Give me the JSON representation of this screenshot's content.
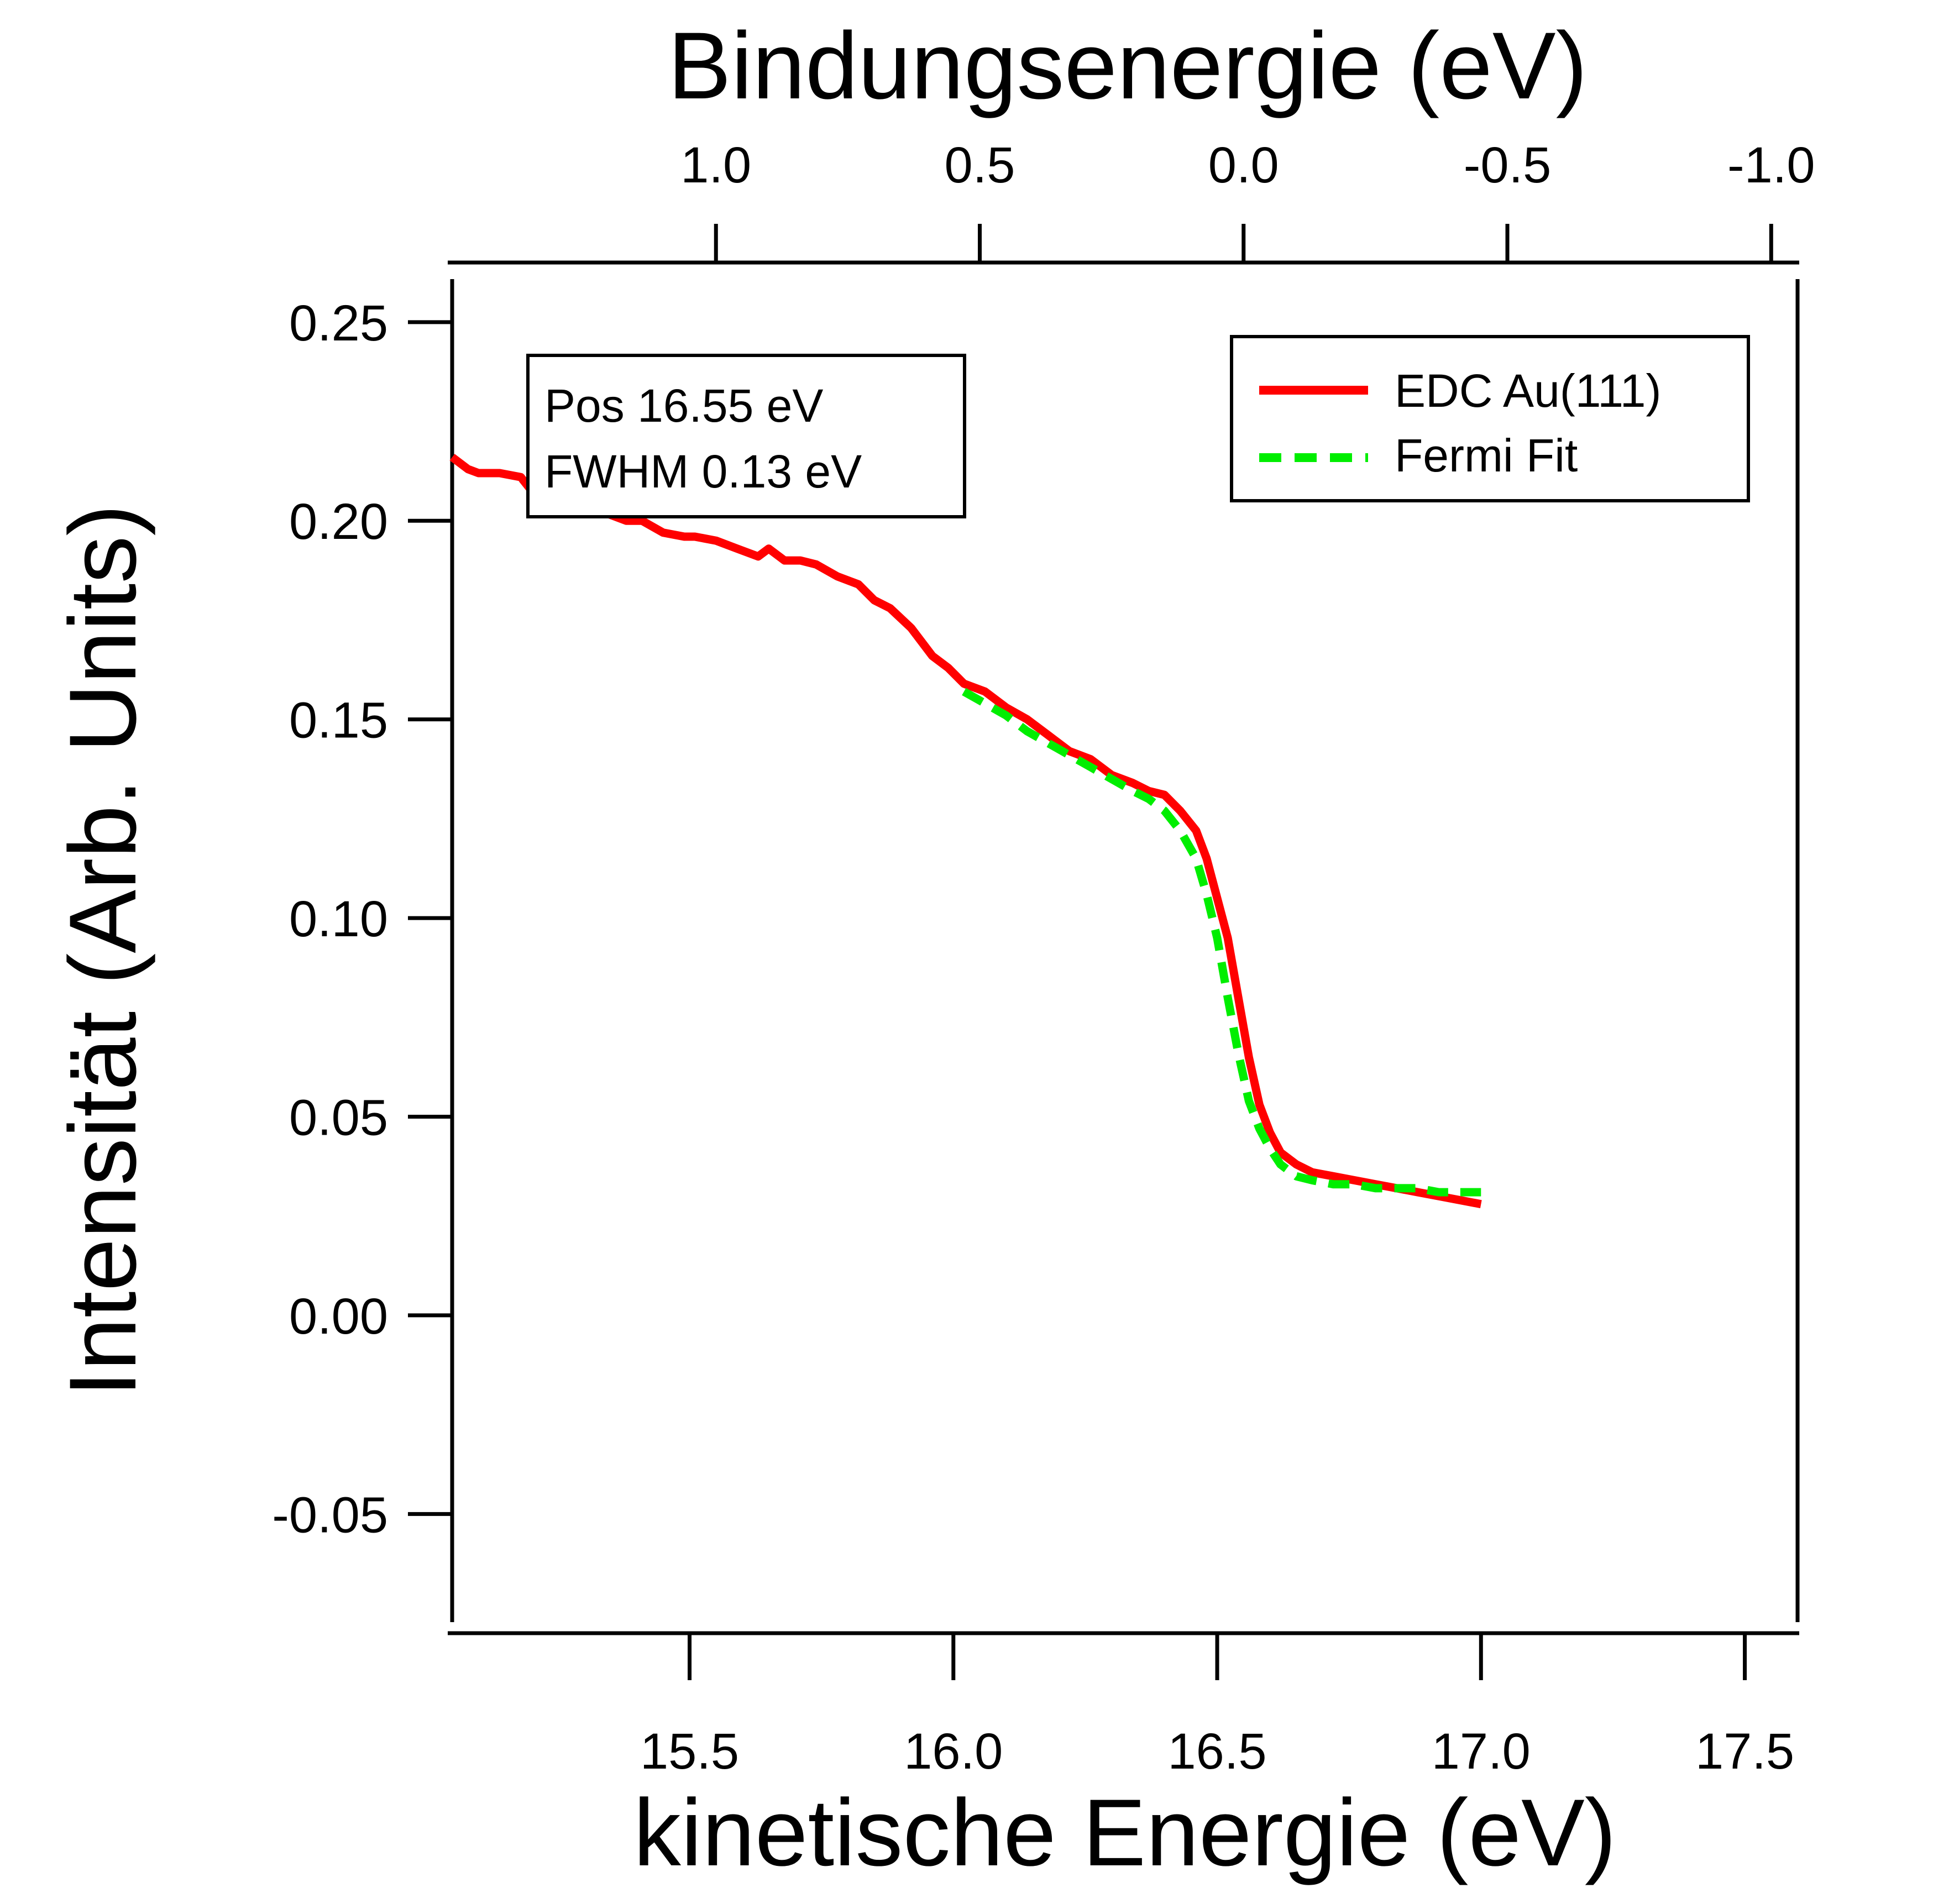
{
  "chart_data": {
    "type": "line",
    "xlabel": "kinetische Energie (eV)",
    "x2label": "Bindungsenergie (eV)",
    "ylabel": "Intensität (Arb. Units)",
    "xlim": [
      15.05,
      17.6
    ],
    "ylim": [
      -0.08,
      0.265
    ],
    "x_ticks": [
      "15.5",
      "16.0",
      "16.5",
      "17.0",
      "17.5"
    ],
    "x2_ticks": [
      "1.0",
      "0.5",
      "0.0",
      "-0.5",
      "-1.0"
    ],
    "y_ticks": [
      "0.25",
      "0.20",
      "0.15",
      "0.10",
      "0.05",
      "0.00",
      "-0.05"
    ],
    "grid": false,
    "annotation": {
      "line1": "Pos 16.55 eV",
      "line2": "FWHM 0.13 eV"
    },
    "legend": {
      "placement": "top-right",
      "entries": [
        "EDC Au(111)",
        "Fermi Fit"
      ]
    },
    "series": [
      {
        "name": "EDC Au(111)",
        "color": "#ff0000",
        "style": "solid",
        "x": [
          15.05,
          15.08,
          15.1,
          15.14,
          15.18,
          15.21,
          15.25,
          15.3,
          15.34,
          15.38,
          15.41,
          15.45,
          15.49,
          15.51,
          15.55,
          15.59,
          15.63,
          15.65,
          15.68,
          15.71,
          15.74,
          15.78,
          15.82,
          15.85,
          15.88,
          15.92,
          15.96,
          15.99,
          16.02,
          16.06,
          16.1,
          16.14,
          16.18,
          16.22,
          16.26,
          16.3,
          16.34,
          16.37,
          16.4,
          16.43,
          16.46,
          16.48,
          16.5,
          16.52,
          16.54,
          16.56,
          16.58,
          16.6,
          16.62,
          16.65,
          16.68,
          16.72,
          16.76,
          16.8,
          16.84,
          16.88,
          16.92,
          16.96,
          17.0
        ],
        "y": [
          0.216,
          0.213,
          0.212,
          0.212,
          0.211,
          0.206,
          0.204,
          0.204,
          0.202,
          0.2,
          0.2,
          0.197,
          0.196,
          0.196,
          0.195,
          0.193,
          0.191,
          0.193,
          0.19,
          0.19,
          0.189,
          0.186,
          0.184,
          0.18,
          0.178,
          0.173,
          0.166,
          0.163,
          0.159,
          0.157,
          0.153,
          0.15,
          0.146,
          0.142,
          0.14,
          0.136,
          0.134,
          0.132,
          0.131,
          0.127,
          0.122,
          0.115,
          0.105,
          0.095,
          0.08,
          0.065,
          0.053,
          0.046,
          0.041,
          0.038,
          0.036,
          0.035,
          0.034,
          0.033,
          0.032,
          0.031,
          0.03,
          0.029,
          0.028
        ]
      },
      {
        "name": "Fermi Fit",
        "color": "#00ee00",
        "style": "dashed",
        "x": [
          16.02,
          16.06,
          16.1,
          16.14,
          16.18,
          16.22,
          16.26,
          16.3,
          16.34,
          16.37,
          16.4,
          16.43,
          16.46,
          16.48,
          16.5,
          16.52,
          16.54,
          16.56,
          16.58,
          16.6,
          16.62,
          16.65,
          16.68,
          16.72,
          16.76,
          16.8,
          16.84,
          16.88,
          16.92,
          16.96,
          17.0
        ],
        "y": [
          0.157,
          0.154,
          0.151,
          0.147,
          0.144,
          0.141,
          0.138,
          0.135,
          0.132,
          0.13,
          0.127,
          0.122,
          0.115,
          0.106,
          0.095,
          0.08,
          0.066,
          0.054,
          0.047,
          0.042,
          0.038,
          0.035,
          0.034,
          0.033,
          0.033,
          0.032,
          0.032,
          0.032,
          0.031,
          0.031,
          0.031
        ]
      }
    ]
  }
}
